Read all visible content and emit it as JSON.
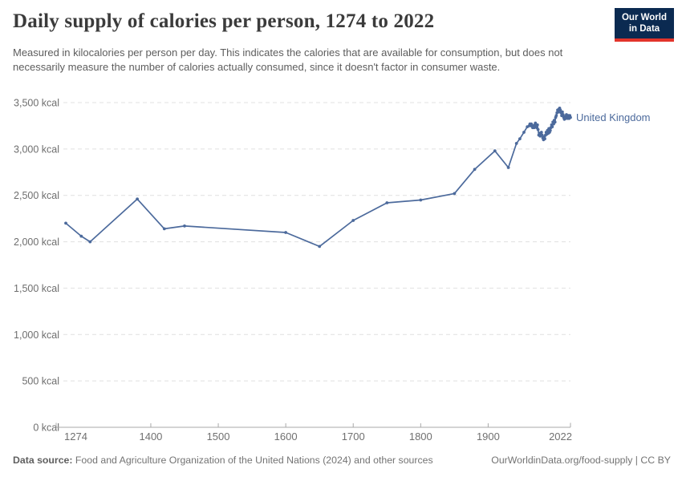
{
  "header": {
    "title": "Daily supply of calories per person, 1274 to 2022",
    "subtitle": "Measured in kilocalories per person per day. This indicates the calories that are available for consumption, but does not necessarily measure the number of calories actually consumed, since it doesn't factor in consumer waste.",
    "logo": {
      "line1": "Our World",
      "line2": "in Data",
      "bg_color": "#0b2a51",
      "accent_color": "#e2342b"
    }
  },
  "chart_data": {
    "type": "line",
    "title": "Daily supply of calories per person, 1274 to 2022",
    "unit": "kcal",
    "xlim": [
      1274,
      2022
    ],
    "ylim": [
      0,
      3500
    ],
    "grid": "horizontal-dashed",
    "legend_position": "end-of-line",
    "x_ticks": [
      "1274",
      "1400",
      "1500",
      "1600",
      "1700",
      "1800",
      "1900",
      "2022"
    ],
    "x_tick_years": [
      1274,
      1400,
      1500,
      1600,
      1700,
      1800,
      1900,
      2022
    ],
    "y_ticks": [
      0,
      500,
      1000,
      1500,
      2000,
      2500,
      3000,
      3500
    ],
    "y_tick_labels": [
      "0 kcal",
      "500 kcal",
      "1,000 kcal",
      "1,500 kcal",
      "2,000 kcal",
      "2,500 kcal",
      "3,000 kcal",
      "3,500 kcal"
    ],
    "colors": {
      "line": "#4c6a9c",
      "gridline": "#e0e0e0",
      "axis": "#a8a8a8",
      "tick_text": "#707070"
    },
    "series": [
      {
        "name": "United Kingdom",
        "color": "#4c6a9c",
        "points": [
          [
            1274,
            2200
          ],
          [
            1297,
            2060
          ],
          [
            1310,
            2000
          ],
          [
            1380,
            2460
          ],
          [
            1420,
            2140
          ],
          [
            1450,
            2170
          ],
          [
            1600,
            2100
          ],
          [
            1650,
            1950
          ],
          [
            1700,
            2230
          ],
          [
            1750,
            2420
          ],
          [
            1800,
            2450
          ],
          [
            1850,
            2520
          ],
          [
            1880,
            2780
          ],
          [
            1910,
            2980
          ],
          [
            1930,
            2800
          ],
          [
            1942,
            3060
          ],
          [
            1947,
            3110
          ],
          [
            1953,
            3180
          ],
          [
            1958,
            3240
          ],
          [
            1961,
            3250
          ],
          [
            1962,
            3270
          ],
          [
            1963,
            3250
          ],
          [
            1964,
            3270
          ],
          [
            1965,
            3250
          ],
          [
            1966,
            3230
          ],
          [
            1967,
            3250
          ],
          [
            1968,
            3230
          ],
          [
            1969,
            3260
          ],
          [
            1970,
            3280
          ],
          [
            1971,
            3250
          ],
          [
            1972,
            3230
          ],
          [
            1973,
            3260
          ],
          [
            1974,
            3210
          ],
          [
            1975,
            3150
          ],
          [
            1976,
            3170
          ],
          [
            1977,
            3140
          ],
          [
            1978,
            3160
          ],
          [
            1979,
            3180
          ],
          [
            1980,
            3150
          ],
          [
            1981,
            3120
          ],
          [
            1982,
            3100
          ],
          [
            1983,
            3130
          ],
          [
            1984,
            3110
          ],
          [
            1985,
            3150
          ],
          [
            1986,
            3180
          ],
          [
            1987,
            3160
          ],
          [
            1988,
            3200
          ],
          [
            1989,
            3170
          ],
          [
            1990,
            3220
          ],
          [
            1991,
            3180
          ],
          [
            1992,
            3200
          ],
          [
            1993,
            3230
          ],
          [
            1994,
            3260
          ],
          [
            1995,
            3240
          ],
          [
            1996,
            3290
          ],
          [
            1997,
            3270
          ],
          [
            1998,
            3310
          ],
          [
            1999,
            3290
          ],
          [
            2000,
            3340
          ],
          [
            2001,
            3360
          ],
          [
            2002,
            3390
          ],
          [
            2003,
            3420
          ],
          [
            2004,
            3400
          ],
          [
            2005,
            3430
          ],
          [
            2006,
            3440
          ],
          [
            2007,
            3420
          ],
          [
            2008,
            3390
          ],
          [
            2009,
            3360
          ],
          [
            2010,
            3400
          ],
          [
            2011,
            3370
          ],
          [
            2012,
            3340
          ],
          [
            2013,
            3320
          ],
          [
            2014,
            3350
          ],
          [
            2015,
            3330
          ],
          [
            2016,
            3370
          ],
          [
            2017,
            3350
          ],
          [
            2018,
            3330
          ],
          [
            2019,
            3360
          ],
          [
            2020,
            3330
          ],
          [
            2021,
            3360
          ],
          [
            2022,
            3340
          ]
        ]
      }
    ]
  },
  "footer": {
    "datasource_label": "Data source:",
    "datasource_text": " Food and Agriculture Organization of the United Nations (2024) and other sources",
    "link_text": "OurWorldinData.org/food-supply | CC BY"
  }
}
